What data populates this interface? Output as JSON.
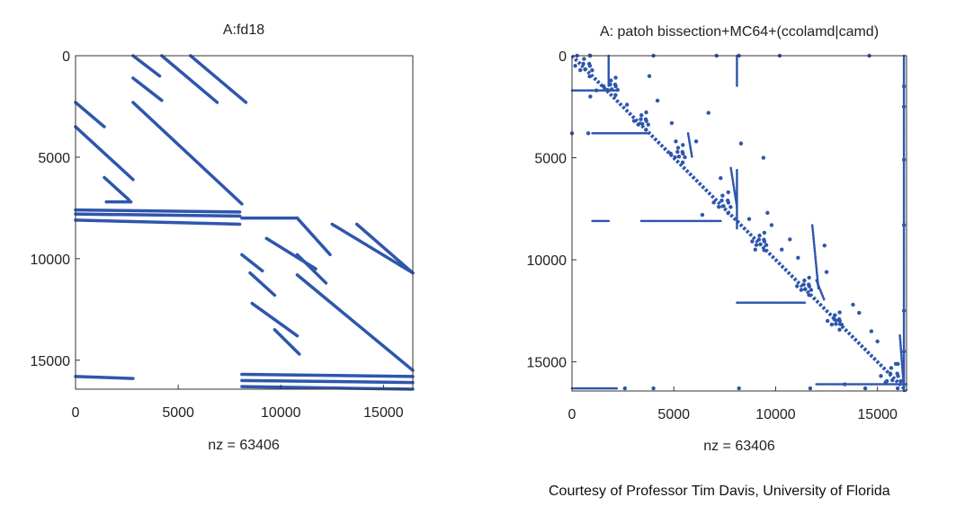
{
  "credit": "Courtesy of Professor Tim Davis, University of Florida",
  "colors": {
    "marks": "#2f56ad",
    "axes": "#333333",
    "text": "#222222"
  },
  "chart_data": [
    {
      "type": "scatter",
      "subtype": "sparsity-pattern",
      "title": "A:fd18",
      "xlabel": "nz = 63406",
      "xlim": [
        0,
        16428
      ],
      "ylim": [
        0,
        16428
      ],
      "y_inverted": true,
      "x_ticks": [
        0,
        5000,
        10000,
        15000
      ],
      "y_ticks": [
        0,
        5000,
        10000,
        15000
      ],
      "x_tick_labels": [
        "0",
        "5000",
        "10000",
        "15000"
      ],
      "y_tick_labels": [
        "0",
        "5000",
        "10000",
        "15000"
      ],
      "grid": false,
      "segments": [
        [
          2800,
          0,
          4100,
          1000
        ],
        [
          4200,
          0,
          6900,
          2300
        ],
        [
          5600,
          0,
          8300,
          2300
        ],
        [
          2800,
          1100,
          4200,
          2200
        ],
        [
          0,
          2300,
          1400,
          3500
        ],
        [
          2800,
          2300,
          8100,
          7300
        ],
        [
          0,
          3500,
          2800,
          6100
        ],
        [
          1400,
          6000,
          2600,
          7100
        ],
        [
          1500,
          7200,
          2700,
          7200
        ],
        [
          0,
          7600,
          8000,
          7700
        ],
        [
          0,
          7800,
          8000,
          7900
        ],
        [
          0,
          8100,
          8000,
          8300
        ],
        [
          8100,
          8000,
          10800,
          8000
        ],
        [
          10800,
          8000,
          12400,
          9800
        ],
        [
          9300,
          9000,
          11700,
          10500
        ],
        [
          12500,
          8300,
          16428,
          10700
        ],
        [
          13700,
          8300,
          16428,
          10700
        ],
        [
          8100,
          9800,
          9100,
          10600
        ],
        [
          10800,
          9800,
          12200,
          11200
        ],
        [
          8500,
          10700,
          9700,
          11800
        ],
        [
          8600,
          12200,
          10800,
          13800
        ],
        [
          10800,
          10800,
          16428,
          15500
        ],
        [
          9700,
          13500,
          10900,
          14700
        ],
        [
          0,
          15800,
          2800,
          15900
        ],
        [
          8100,
          15700,
          16428,
          15800
        ],
        [
          8100,
          16000,
          16428,
          16100
        ],
        [
          8100,
          16300,
          16428,
          16428
        ]
      ]
    },
    {
      "type": "scatter",
      "subtype": "sparsity-pattern",
      "title": "A: patoh bissection+MC64+(ccolamd|camd)",
      "xlabel": "nz = 63406",
      "xlim": [
        0,
        16428
      ],
      "ylim": [
        0,
        16428
      ],
      "y_inverted": true,
      "x_ticks": [
        0,
        5000,
        10000,
        15000
      ],
      "y_ticks": [
        0,
        5000,
        10000,
        15000
      ],
      "x_tick_labels": [
        "0",
        "5000",
        "10000",
        "15000"
      ],
      "y_tick_labels": [
        "0",
        "5000",
        "10000",
        "15000"
      ],
      "grid": false,
      "diagonal": [
        0,
        0,
        16428,
        16428
      ],
      "blobs": [
        [
          700,
          500,
          600
        ],
        [
          2000,
          1500,
          500
        ],
        [
          3500,
          3200,
          500
        ],
        [
          5300,
          4800,
          500
        ],
        [
          7500,
          7200,
          600
        ],
        [
          9300,
          9100,
          500
        ],
        [
          11500,
          11300,
          500
        ],
        [
          13000,
          13000,
          500
        ],
        [
          15800,
          15700,
          700
        ]
      ],
      "segments": [
        [
          0,
          1700,
          2200,
          1700
        ],
        [
          1000,
          3800,
          3700,
          3800
        ],
        [
          1000,
          8100,
          1800,
          8100
        ],
        [
          3400,
          8100,
          7300,
          8100
        ],
        [
          8100,
          12100,
          11500,
          12100
        ],
        [
          0,
          16300,
          2200,
          16300
        ],
        [
          12000,
          16100,
          16428,
          16100
        ],
        [
          8100,
          0,
          8100,
          1500
        ],
        [
          8100,
          5600,
          8100,
          8500
        ],
        [
          1800,
          0,
          1800,
          1500
        ],
        [
          16300,
          0,
          16300,
          16428
        ],
        [
          7800,
          5500,
          8100,
          7400
        ],
        [
          5700,
          3800,
          5900,
          5000
        ],
        [
          12000,
          11000,
          12400,
          12000
        ],
        [
          11800,
          8300,
          12100,
          11400
        ],
        [
          16100,
          13700,
          16300,
          16300
        ]
      ],
      "points": [
        [
          250,
          0
        ],
        [
          900,
          0
        ],
        [
          4000,
          0
        ],
        [
          7100,
          0
        ],
        [
          8200,
          0
        ],
        [
          10200,
          0
        ],
        [
          14600,
          0
        ],
        [
          0,
          3800
        ],
        [
          800,
          3800
        ],
        [
          900,
          2000
        ],
        [
          1200,
          1700
        ],
        [
          16300,
          1500
        ],
        [
          16300,
          2500
        ],
        [
          16300,
          5100
        ],
        [
          16300,
          8300
        ],
        [
          16300,
          12500
        ],
        [
          16300,
          14500
        ],
        [
          8200,
          16300
        ],
        [
          4000,
          16300
        ],
        [
          2600,
          16300
        ],
        [
          11700,
          16300
        ],
        [
          14400,
          16300
        ],
        [
          6700,
          2800
        ],
        [
          8300,
          4300
        ],
        [
          9400,
          5000
        ],
        [
          11100,
          9900
        ],
        [
          12400,
          9300
        ],
        [
          3800,
          1000
        ],
        [
          4200,
          2200
        ],
        [
          6100,
          4200
        ],
        [
          7300,
          6000
        ],
        [
          9800,
          8300
        ],
        [
          12500,
          10600
        ],
        [
          14100,
          12600
        ],
        [
          15000,
          14000
        ],
        [
          14700,
          13500
        ],
        [
          13800,
          12200
        ],
        [
          10300,
          9500
        ],
        [
          10700,
          9000
        ],
        [
          8700,
          8000
        ],
        [
          9600,
          7700
        ],
        [
          5100,
          4200
        ],
        [
          4900,
          3300
        ],
        [
          2700,
          2400
        ],
        [
          6400,
          7800
        ],
        [
          9000,
          9500
        ],
        [
          15400,
          16000
        ],
        [
          15900,
          15100
        ],
        [
          13400,
          16100
        ]
      ]
    }
  ]
}
